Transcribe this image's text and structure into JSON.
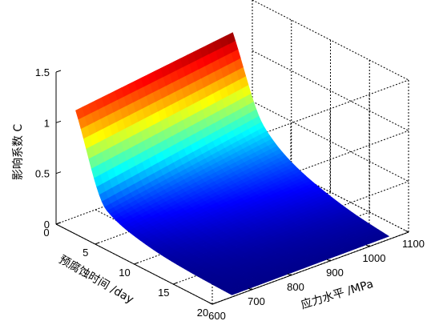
{
  "chart_data": {
    "type": "surface",
    "zlabel": "影响系数 C",
    "xlabel": "应力水平 /MPa",
    "ylabel": "预腐蚀时间 /day",
    "x_ticks": [
      "600",
      "700",
      "800",
      "900",
      "1000",
      "1100"
    ],
    "y_ticks": [
      "0",
      "5",
      "10",
      "15",
      "20"
    ],
    "z_ticks": [
      "0",
      "0.5",
      "1",
      "1.5"
    ],
    "xlim": [
      600,
      1100
    ],
    "ylim": [
      0,
      20
    ],
    "zlim": [
      0,
      1.5
    ],
    "grid": true,
    "colormap": "jet",
    "stress_levels": [
      650,
      1050
    ],
    "pre_corrosion_days": [
      0,
      4,
      8,
      12,
      16,
      20
    ],
    "surface_c": [
      [
        1.05,
        1.25
      ],
      [
        0.22,
        0.48
      ],
      [
        0.1,
        0.25
      ],
      [
        0.05,
        0.14
      ],
      [
        0.03,
        0.07
      ],
      [
        0.02,
        0.03
      ]
    ]
  }
}
